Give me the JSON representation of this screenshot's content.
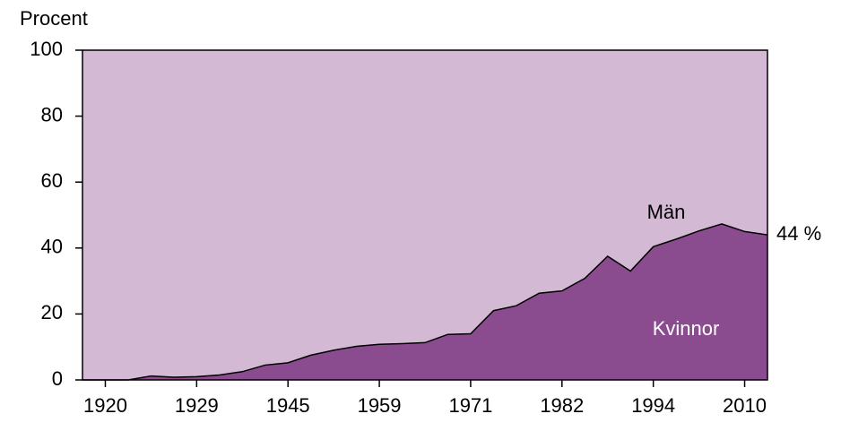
{
  "chart_data": {
    "type": "stacked_area",
    "y_label": "Procent",
    "categories": [
      null,
      "1920",
      null,
      null,
      null,
      "1929",
      null,
      null,
      null,
      "1945",
      null,
      null,
      null,
      "1959",
      null,
      null,
      null,
      "1971",
      null,
      null,
      null,
      "1982",
      null,
      null,
      null,
      "1994",
      null,
      null,
      null,
      "2010",
      null
    ],
    "series": [
      {
        "name": "Kvinnor",
        "color": "#8b4c8f",
        "label_color": "#ffffff",
        "values": [
          0,
          0,
          0,
          1.2,
          0.8,
          1,
          1.5,
          2.5,
          4.5,
          5.2,
          7.5,
          9,
          10.2,
          10.8,
          11,
          11.3,
          13.8,
          14,
          21,
          22.5,
          26.3,
          27,
          30.8,
          37.5,
          33,
          40.4,
          42.7,
          45.2,
          47.3,
          45,
          44
        ]
      },
      {
        "name": "Män",
        "color": "#d3b9d3",
        "label_color": "#000000",
        "values": [
          100,
          100,
          100,
          98.8,
          99.2,
          99,
          98.5,
          97.5,
          95.5,
          94.8,
          92.5,
          91,
          89.8,
          89.2,
          89,
          88.7,
          86.2,
          86,
          79,
          77.5,
          73.7,
          73,
          69.2,
          62.5,
          67,
          59.6,
          57.3,
          54.8,
          52.7,
          55,
          56
        ]
      }
    ],
    "annotation": "44 %",
    "ylim": [
      0,
      100
    ],
    "yticks": [
      0,
      20,
      40,
      60,
      80,
      100
    ]
  }
}
